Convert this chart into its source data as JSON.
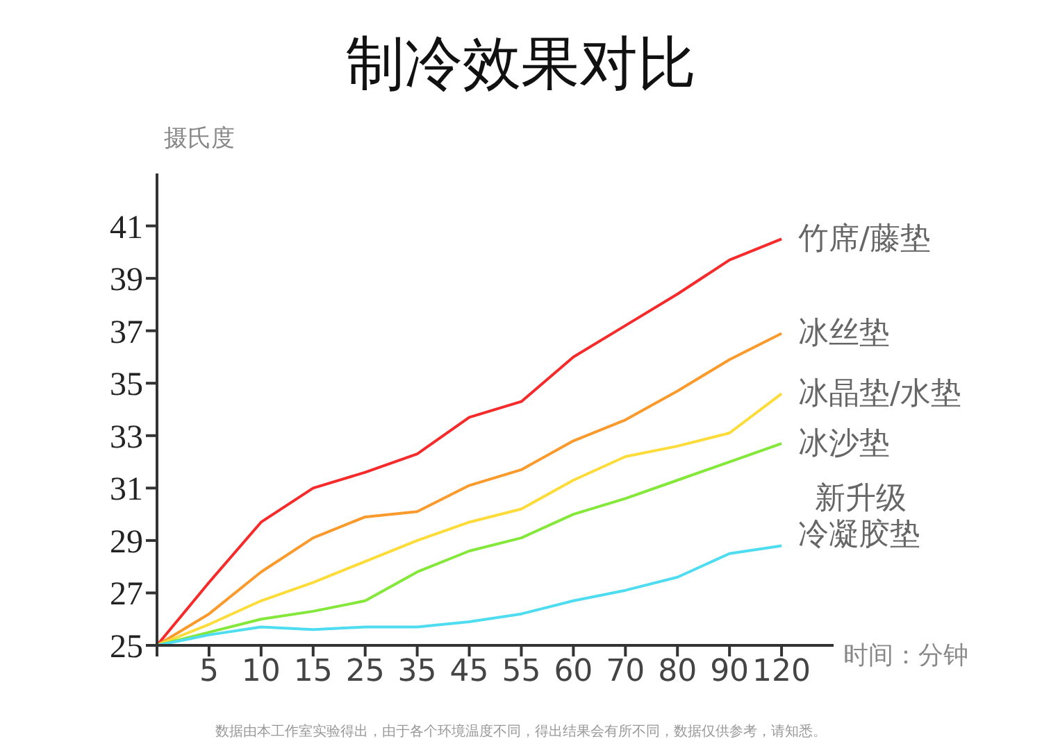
{
  "chart_data": {
    "type": "line",
    "title": "制冷效果对比",
    "ylabel": "摄氏度",
    "xlabel": "时间：分钟",
    "categories": [
      null,
      "5",
      "10",
      "15",
      "25",
      "35",
      "45",
      "55",
      "60",
      "70",
      "80",
      "90",
      "120"
    ],
    "ylim": [
      25,
      43
    ],
    "yticks": [
      25,
      27,
      29,
      31,
      33,
      35,
      37,
      39,
      41
    ],
    "series": [
      {
        "name": "竹席/藤垫",
        "color": "#f52a2a",
        "values": [
          25,
          27.4,
          29.7,
          31.0,
          31.6,
          32.3,
          33.7,
          34.3,
          36.0,
          37.2,
          38.4,
          39.7,
          40.5
        ]
      },
      {
        "name": "冰丝垫",
        "color": "#fb9a2c",
        "values": [
          25,
          26.2,
          27.8,
          29.1,
          29.9,
          30.1,
          31.1,
          31.7,
          32.8,
          33.6,
          34.7,
          35.9,
          36.9
        ]
      },
      {
        "name": "冰晶垫/水垫",
        "color": "#fddc3a",
        "values": [
          25,
          25.8,
          26.7,
          27.4,
          28.2,
          29.0,
          29.7,
          30.2,
          31.3,
          32.2,
          32.6,
          33.1,
          34.6
        ]
      },
      {
        "name": "冰沙垫",
        "color": "#84e83a",
        "values": [
          25,
          25.5,
          26.0,
          26.3,
          26.7,
          27.8,
          28.6,
          29.1,
          30.0,
          30.6,
          31.3,
          32.0,
          32.7
        ]
      },
      {
        "name": "新升级冷凝胶垫",
        "color": "#4edcf0",
        "values": [
          25,
          25.4,
          25.7,
          25.6,
          25.7,
          25.7,
          25.9,
          26.2,
          26.7,
          27.1,
          27.6,
          28.5,
          28.8
        ]
      }
    ],
    "annotations": [
      "数据由本工作室实验得出，由于各个环境温度不同，得出结果会有所不同，数据仅供参考，请知悉。"
    ]
  }
}
